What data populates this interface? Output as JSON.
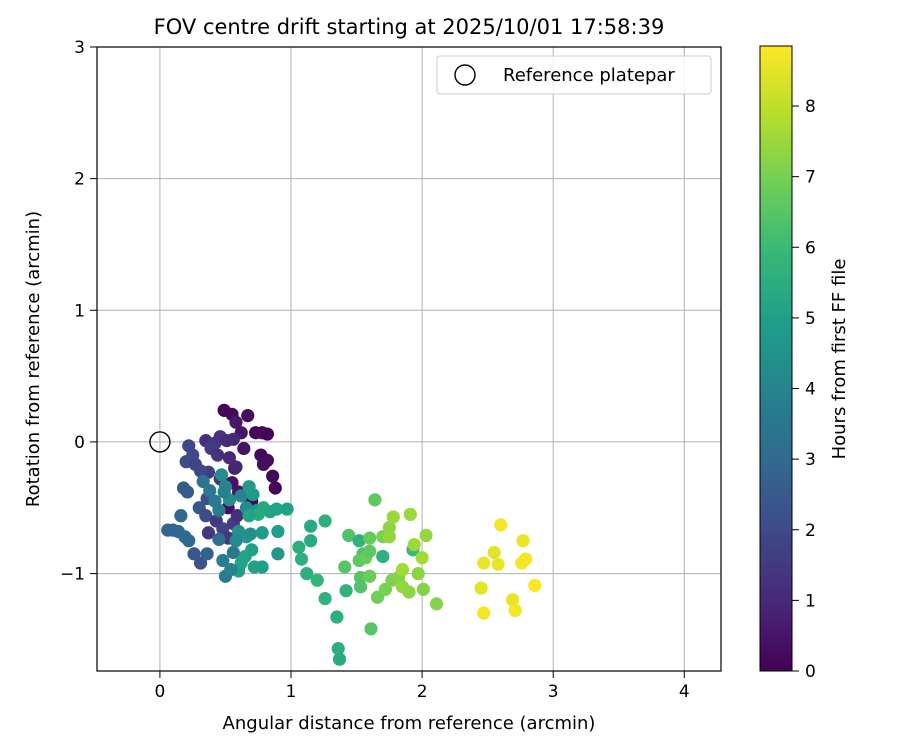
{
  "chart_data": {
    "type": "scatter",
    "title": "FOV centre drift starting at 2025/10/01 17:58:39",
    "xlabel": "Angular distance from reference (arcmin)",
    "ylabel": "Rotation from reference (arcmin)",
    "xlim": [
      -0.48,
      4.28
    ],
    "ylim": [
      -1.74,
      3.0
    ],
    "xticks": [
      0,
      1,
      2,
      3,
      4
    ],
    "yticks": [
      -1,
      0,
      1,
      2,
      3
    ],
    "xtick_labels": [
      "0",
      "1",
      "2",
      "3",
      "4"
    ],
    "ytick_labels": [
      "−1",
      "0",
      "1",
      "2",
      "3"
    ],
    "grid": true,
    "legend": {
      "label": "Reference platepar",
      "location": "top-right"
    },
    "reference_point": {
      "x": 0,
      "y": 0
    },
    "colorbar": {
      "label": "Hours from first FF file",
      "range": [
        0,
        8.85
      ],
      "ticks": [
        0,
        1,
        2,
        3,
        4,
        5,
        6,
        7,
        8
      ],
      "tick_labels": [
        "0",
        "1",
        "2",
        "3",
        "4",
        "5",
        "6",
        "7",
        "8"
      ],
      "colormap": [
        "#440154",
        "#482878",
        "#3e4989",
        "#31688e",
        "#26828e",
        "#1f9e89",
        "#35b779",
        "#6ece58",
        "#b5de2b",
        "#fde725"
      ]
    },
    "points": [
      {
        "x": 0.49,
        "y": 0.24,
        "t": 0.1
      },
      {
        "x": 0.55,
        "y": 0.21,
        "t": 0.2
      },
      {
        "x": 0.67,
        "y": 0.2,
        "t": 0.3
      },
      {
        "x": 0.73,
        "y": 0.07,
        "t": 0.15
      },
      {
        "x": 0.78,
        "y": 0.07,
        "t": 0.25
      },
      {
        "x": 0.82,
        "y": 0.06,
        "t": 0.1
      },
      {
        "x": 0.77,
        "y": -0.1,
        "t": 0.2
      },
      {
        "x": 0.82,
        "y": -0.14,
        "t": 0.3
      },
      {
        "x": 0.86,
        "y": -0.26,
        "t": 0.15
      },
      {
        "x": 0.88,
        "y": -0.35,
        "t": 0.1
      },
      {
        "x": 0.79,
        "y": -0.17,
        "t": 0.35
      },
      {
        "x": 0.58,
        "y": 0.15,
        "t": 0.6
      },
      {
        "x": 0.62,
        "y": 0.07,
        "t": 0.5
      },
      {
        "x": 0.64,
        "y": -0.05,
        "t": 0.45
      },
      {
        "x": 0.57,
        "y": -0.2,
        "t": 0.7
      },
      {
        "x": 0.55,
        "y": -0.31,
        "t": 0.4
      },
      {
        "x": 0.52,
        "y": -0.5,
        "t": 0.3
      },
      {
        "x": 0.6,
        "y": -0.38,
        "t": 0.5
      },
      {
        "x": 0.65,
        "y": -0.4,
        "t": 0.2
      },
      {
        "x": 0.7,
        "y": -0.45,
        "t": 0.1
      },
      {
        "x": 0.35,
        "y": 0.01,
        "t": 1.2
      },
      {
        "x": 0.42,
        "y": -0.01,
        "t": 1.5
      },
      {
        "x": 0.46,
        "y": 0.04,
        "t": 1.3
      },
      {
        "x": 0.51,
        "y": 0.01,
        "t": 1.1
      },
      {
        "x": 0.56,
        "y": 0.02,
        "t": 1.0
      },
      {
        "x": 0.39,
        "y": -0.05,
        "t": 1.6
      },
      {
        "x": 0.44,
        "y": -0.1,
        "t": 1.3
      },
      {
        "x": 0.53,
        "y": -0.12,
        "t": 1.0
      },
      {
        "x": 0.58,
        "y": -0.19,
        "t": 0.9
      },
      {
        "x": 0.46,
        "y": -0.28,
        "t": 1.3
      },
      {
        "x": 0.37,
        "y": -0.23,
        "t": 1.6
      },
      {
        "x": 0.22,
        "y": -0.03,
        "t": 1.9
      },
      {
        "x": 0.25,
        "y": -0.1,
        "t": 2.0
      },
      {
        "x": 0.2,
        "y": -0.15,
        "t": 2.1
      },
      {
        "x": 0.27,
        "y": -0.17,
        "t": 1.8
      },
      {
        "x": 0.31,
        "y": -0.22,
        "t": 1.9
      },
      {
        "x": 0.18,
        "y": -0.35,
        "t": 2.6
      },
      {
        "x": 0.21,
        "y": -0.38,
        "t": 2.5
      },
      {
        "x": 0.3,
        "y": -0.5,
        "t": 2.4
      },
      {
        "x": 0.36,
        "y": -0.43,
        "t": 2.2
      },
      {
        "x": 0.35,
        "y": -0.56,
        "t": 2.1
      },
      {
        "x": 0.37,
        "y": -0.69,
        "t": 1.4
      },
      {
        "x": 0.43,
        "y": -0.6,
        "t": 1.5
      },
      {
        "x": 0.48,
        "y": -0.66,
        "t": 1.8
      },
      {
        "x": 0.52,
        "y": -0.73,
        "t": 1.5
      },
      {
        "x": 0.56,
        "y": -0.62,
        "t": 1.6
      },
      {
        "x": 0.59,
        "y": -0.56,
        "t": 1.2
      },
      {
        "x": 0.06,
        "y": -0.67,
        "t": 2.8
      },
      {
        "x": 0.1,
        "y": -0.67,
        "t": 2.9
      },
      {
        "x": 0.14,
        "y": -0.68,
        "t": 3.0
      },
      {
        "x": 0.16,
        "y": -0.56,
        "t": 3.0
      },
      {
        "x": 0.19,
        "y": -0.72,
        "t": 3.1
      },
      {
        "x": 0.22,
        "y": -0.75,
        "t": 3.0
      },
      {
        "x": 0.26,
        "y": -0.85,
        "t": 2.4
      },
      {
        "x": 0.31,
        "y": -0.92,
        "t": 2.3
      },
      {
        "x": 0.36,
        "y": -0.85,
        "t": 2.8
      },
      {
        "x": 0.33,
        "y": -0.3,
        "t": 3.4
      },
      {
        "x": 0.38,
        "y": -0.37,
        "t": 3.5
      },
      {
        "x": 0.42,
        "y": -0.45,
        "t": 3.6
      },
      {
        "x": 0.45,
        "y": -0.52,
        "t": 3.7
      },
      {
        "x": 0.47,
        "y": -0.25,
        "t": 4.3
      },
      {
        "x": 0.5,
        "y": -0.34,
        "t": 4.1
      },
      {
        "x": 0.53,
        "y": -0.44,
        "t": 4.4
      },
      {
        "x": 0.49,
        "y": -0.38,
        "t": 3.9
      },
      {
        "x": 0.48,
        "y": -0.9,
        "t": 3.8
      },
      {
        "x": 0.5,
        "y": -1.02,
        "t": 3.7
      },
      {
        "x": 0.45,
        "y": -0.74,
        "t": 3.2
      },
      {
        "x": 0.56,
        "y": -0.84,
        "t": 3.5
      },
      {
        "x": 0.62,
        "y": -0.41,
        "t": 4.0
      },
      {
        "x": 0.66,
        "y": -0.5,
        "t": 4.3
      },
      {
        "x": 0.68,
        "y": -0.34,
        "t": 4.7
      },
      {
        "x": 0.71,
        "y": -0.4,
        "t": 4.8
      },
      {
        "x": 0.74,
        "y": -0.52,
        "t": 4.6
      },
      {
        "x": 0.66,
        "y": -0.72,
        "t": 4.9
      },
      {
        "x": 0.7,
        "y": -0.82,
        "t": 5.0
      },
      {
        "x": 0.72,
        "y": -0.95,
        "t": 5.1
      },
      {
        "x": 0.62,
        "y": -0.92,
        "t": 5.2
      },
      {
        "x": 0.6,
        "y": -0.98,
        "t": 5.0
      },
      {
        "x": 0.6,
        "y": -0.68,
        "t": 4.5
      },
      {
        "x": 0.58,
        "y": -0.75,
        "t": 4.2
      },
      {
        "x": 0.54,
        "y": -0.97,
        "t": 4.0
      },
      {
        "x": 0.69,
        "y": -0.7,
        "t": 4.4
      },
      {
        "x": 0.65,
        "y": -0.87,
        "t": 5.1
      },
      {
        "x": 0.78,
        "y": -0.69,
        "t": 4.8
      },
      {
        "x": 0.78,
        "y": -0.95,
        "t": 5.0
      },
      {
        "x": 0.79,
        "y": -0.5,
        "t": 5.3
      },
      {
        "x": 0.84,
        "y": -0.53,
        "t": 5.2
      },
      {
        "x": 0.89,
        "y": -0.51,
        "t": 5.1
      },
      {
        "x": 0.97,
        "y": -0.51,
        "t": 5.0
      },
      {
        "x": 0.9,
        "y": -0.68,
        "t": 4.9
      },
      {
        "x": 0.9,
        "y": -0.85,
        "t": 4.7
      },
      {
        "x": 0.75,
        "y": -0.55,
        "t": 5.4
      },
      {
        "x": 0.68,
        "y": -0.56,
        "t": 5.1
      },
      {
        "x": 1.06,
        "y": -0.8,
        "t": 5.5
      },
      {
        "x": 1.08,
        "y": -0.89,
        "t": 5.6
      },
      {
        "x": 1.15,
        "y": -0.75,
        "t": 5.4
      },
      {
        "x": 1.15,
        "y": -0.64,
        "t": 5.3
      },
      {
        "x": 1.26,
        "y": -0.6,
        "t": 5.6
      },
      {
        "x": 1.12,
        "y": -1.0,
        "t": 5.6
      },
      {
        "x": 1.2,
        "y": -1.05,
        "t": 5.8
      },
      {
        "x": 1.26,
        "y": -1.19,
        "t": 5.7
      },
      {
        "x": 1.35,
        "y": -1.33,
        "t": 5.6
      },
      {
        "x": 1.36,
        "y": -1.57,
        "t": 5.5
      },
      {
        "x": 1.37,
        "y": -1.65,
        "t": 5.4
      },
      {
        "x": 1.42,
        "y": -1.13,
        "t": 5.7
      },
      {
        "x": 1.41,
        "y": -0.95,
        "t": 6.5
      },
      {
        "x": 1.44,
        "y": -0.71,
        "t": 6.4
      },
      {
        "x": 1.52,
        "y": -0.75,
        "t": 5.7
      },
      {
        "x": 1.55,
        "y": -0.85,
        "t": 6.3
      },
      {
        "x": 1.52,
        "y": -0.9,
        "t": 6.6
      },
      {
        "x": 1.53,
        "y": -1.03,
        "t": 6.5
      },
      {
        "x": 1.53,
        "y": -1.1,
        "t": 6.4
      },
      {
        "x": 1.57,
        "y": -0.88,
        "t": 6.8
      },
      {
        "x": 1.6,
        "y": -0.83,
        "t": 6.6
      },
      {
        "x": 1.6,
        "y": -0.73,
        "t": 6.7
      },
      {
        "x": 1.6,
        "y": -1.02,
        "t": 6.8
      },
      {
        "x": 1.61,
        "y": -1.42,
        "t": 6.5
      },
      {
        "x": 1.64,
        "y": -0.44,
        "t": 6.6
      },
      {
        "x": 1.66,
        "y": -1.18,
        "t": 6.9
      },
      {
        "x": 1.7,
        "y": -0.87,
        "t": 5.6
      },
      {
        "x": 1.7,
        "y": -0.72,
        "t": 7.0
      },
      {
        "x": 1.72,
        "y": -1.12,
        "t": 7.0
      },
      {
        "x": 1.75,
        "y": -0.72,
        "t": 7.4
      },
      {
        "x": 1.75,
        "y": -0.65,
        "t": 7.3
      },
      {
        "x": 1.77,
        "y": -1.05,
        "t": 7.1
      },
      {
        "x": 1.78,
        "y": -0.57,
        "t": 7.5
      },
      {
        "x": 1.82,
        "y": -1.03,
        "t": 7.2
      },
      {
        "x": 1.85,
        "y": -1.1,
        "t": 7.4
      },
      {
        "x": 1.85,
        "y": -0.97,
        "t": 7.6
      },
      {
        "x": 1.91,
        "y": -0.55,
        "t": 7.5
      },
      {
        "x": 1.9,
        "y": -1.14,
        "t": 7.3
      },
      {
        "x": 1.93,
        "y": -0.82,
        "t": 6.0
      },
      {
        "x": 1.94,
        "y": -0.78,
        "t": 7.5
      },
      {
        "x": 1.97,
        "y": -1.0,
        "t": 7.3
      },
      {
        "x": 2.0,
        "y": -0.88,
        "t": 7.6
      },
      {
        "x": 2.01,
        "y": -1.12,
        "t": 7.2
      },
      {
        "x": 2.03,
        "y": -0.71,
        "t": 7.4
      },
      {
        "x": 2.11,
        "y": -1.23,
        "t": 7.2
      },
      {
        "x": 2.45,
        "y": -1.11,
        "t": 8.5
      },
      {
        "x": 2.47,
        "y": -0.92,
        "t": 8.6
      },
      {
        "x": 2.47,
        "y": -1.3,
        "t": 8.7
      },
      {
        "x": 2.55,
        "y": -0.84,
        "t": 8.5
      },
      {
        "x": 2.58,
        "y": -0.93,
        "t": 8.6
      },
      {
        "x": 2.6,
        "y": -0.63,
        "t": 8.7
      },
      {
        "x": 2.69,
        "y": -1.2,
        "t": 8.6
      },
      {
        "x": 2.71,
        "y": -1.28,
        "t": 8.7
      },
      {
        "x": 2.76,
        "y": -0.92,
        "t": 8.8
      },
      {
        "x": 2.77,
        "y": -0.75,
        "t": 8.6
      },
      {
        "x": 2.79,
        "y": -0.89,
        "t": 8.7
      },
      {
        "x": 2.86,
        "y": -1.09,
        "t": 8.8
      }
    ]
  }
}
